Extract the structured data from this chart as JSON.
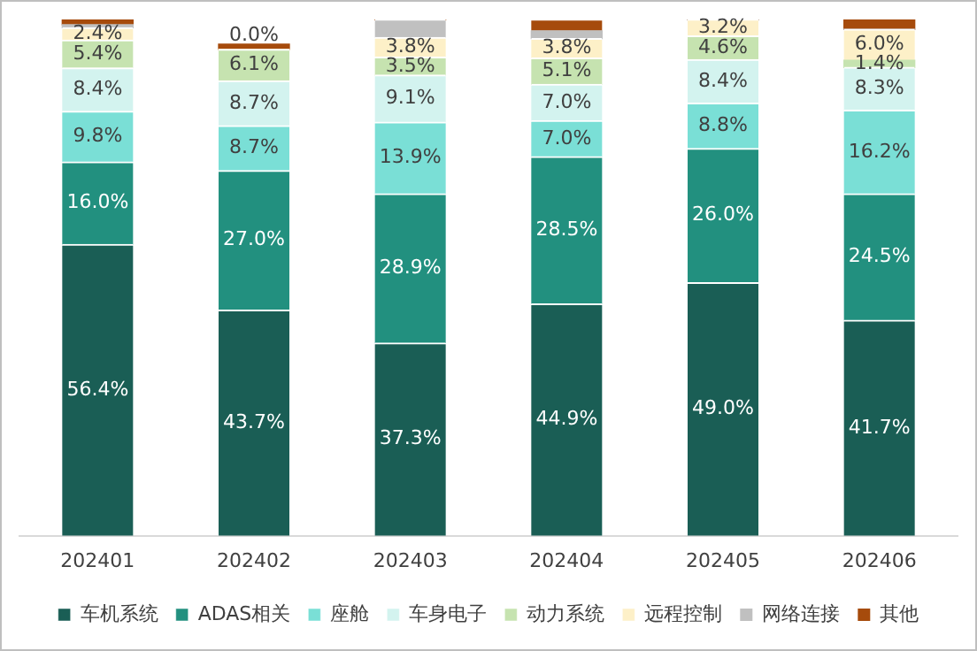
{
  "chart_data": {
    "type": "bar",
    "stacked": true,
    "categories": [
      "202401",
      "202402",
      "202403",
      "202404",
      "202405",
      "202406"
    ],
    "ylim": [
      0,
      100
    ],
    "tick_labels": "x",
    "grid": false,
    "legend": "bottom",
    "series": [
      {
        "name": "车机系统",
        "color": "#1a5e55",
        "values": [
          56.4,
          43.7,
          37.3,
          44.9,
          49.0,
          41.7
        ],
        "value_labels": [
          "56.4%",
          "43.7%",
          "37.3%",
          "44.9%",
          "49.0%",
          "41.7%"
        ]
      },
      {
        "name": "ADAS相关",
        "color": "#22907f",
        "values": [
          16.0,
          27.0,
          28.9,
          28.5,
          26.0,
          24.5
        ],
        "value_labels": [
          "16.0%",
          "27.0%",
          "28.9%",
          "28.5%",
          "26.0%",
          "24.5%"
        ]
      },
      {
        "name": "座舱",
        "color": "#7adfd6",
        "values": [
          9.8,
          8.7,
          13.9,
          7.0,
          8.8,
          16.2
        ],
        "value_labels": [
          "9.8%",
          "8.7%",
          "13.9%",
          "7.0%",
          "8.8%",
          "16.2%"
        ]
      },
      {
        "name": "车身电子",
        "color": "#d3f3ef",
        "values": [
          8.4,
          8.7,
          9.1,
          7.0,
          8.4,
          8.3
        ],
        "value_labels": [
          "8.4%",
          "8.7%",
          "9.1%",
          "7.0%",
          "8.4%",
          "8.3%"
        ]
      },
      {
        "name": "动力系统",
        "color": "#c6e3b0",
        "values": [
          5.4,
          6.1,
          3.5,
          5.1,
          4.6,
          1.4
        ],
        "value_labels": [
          "5.4%",
          "6.1%",
          "3.5%",
          "5.1%",
          "4.6%",
          "1.4%"
        ]
      },
      {
        "name": "远程控制",
        "color": "#fdf0c8",
        "values": [
          2.4,
          0.0,
          3.8,
          3.8,
          3.2,
          6.0
        ],
        "value_labels": [
          "2.4%",
          "0.0%",
          "3.8%",
          "3.8%",
          "3.2%",
          "6.0%"
        ]
      },
      {
        "name": "网络连接",
        "color": "#c0c0c0",
        "values": [
          0.6,
          null,
          3.5,
          1.5,
          0,
          0
        ],
        "value_labels": [
          null,
          null,
          null,
          null,
          null,
          null
        ]
      },
      {
        "name": "其他",
        "color": "#a64b0c",
        "values": [
          1.0,
          1.0,
          0,
          2.2,
          0,
          1.9
        ],
        "value_labels": [
          null,
          null,
          null,
          null,
          null,
          null
        ]
      }
    ]
  }
}
